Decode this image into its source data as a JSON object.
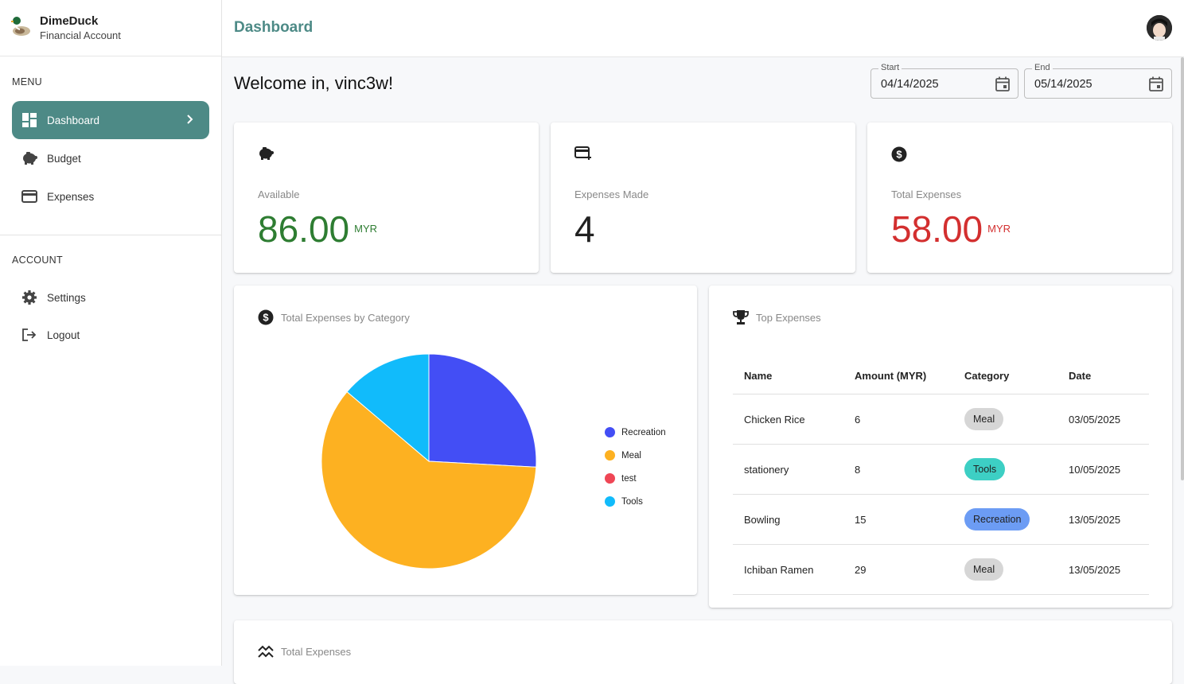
{
  "brand": {
    "name": "DimeDuck",
    "subtitle": "Financial Account"
  },
  "sidebar": {
    "menu_title": "MENU",
    "menu_items": [
      {
        "label": "Dashboard",
        "icon": "dashboard-icon",
        "active": true
      },
      {
        "label": "Budget",
        "icon": "piggy-bank-icon"
      },
      {
        "label": "Expenses",
        "icon": "credit-card-icon"
      }
    ],
    "account_title": "ACCOUNT",
    "account_items": [
      {
        "label": "Settings",
        "icon": "gear-icon"
      },
      {
        "label": "Logout",
        "icon": "logout-icon"
      }
    ]
  },
  "header": {
    "title": "Dashboard"
  },
  "welcome": "Welcome in, vinc3w!",
  "date_range": {
    "start_label": "Start",
    "start_value": "04/14/2025",
    "end_label": "End",
    "end_value": "05/14/2025"
  },
  "stats": {
    "available": {
      "label": "Available",
      "value": "86.00",
      "unit": "MYR",
      "color": "#2e7d32"
    },
    "expenses_made": {
      "label": "Expenses Made",
      "value": "4"
    },
    "total_expenses": {
      "label": "Total Expenses",
      "value": "58.00",
      "unit": "MYR",
      "color": "#d32f2f"
    }
  },
  "pie_card": {
    "title": "Total Expenses by Category"
  },
  "chart_data": {
    "type": "pie",
    "categories": [
      "Recreation",
      "Meal",
      "test",
      "Tools"
    ],
    "values": [
      15,
      35,
      0,
      8
    ],
    "colors": [
      "#434ef5",
      "#fdb121",
      "#ef4655",
      "#11bbfb"
    ],
    "legend": "right"
  },
  "top_expenses": {
    "title": "Top Expenses",
    "columns": [
      "Name",
      "Amount (MYR)",
      "Category",
      "Date"
    ],
    "rows": [
      {
        "name": "Chicken Rice",
        "amount": "6",
        "category": "Meal",
        "date": "03/05/2025",
        "chip_color": "#d6d6d6"
      },
      {
        "name": "stationery",
        "amount": "8",
        "category": "Tools",
        "date": "10/05/2025",
        "chip_color": "#3dcfc4"
      },
      {
        "name": "Bowling",
        "amount": "15",
        "category": "Recreation",
        "date": "13/05/2025",
        "chip_color": "#6c9cf4"
      },
      {
        "name": "Ichiban Ramen",
        "amount": "29",
        "category": "Meal",
        "date": "13/05/2025",
        "chip_color": "#d6d6d6"
      }
    ]
  },
  "total_expenses_card": {
    "title": "Total Expenses"
  }
}
